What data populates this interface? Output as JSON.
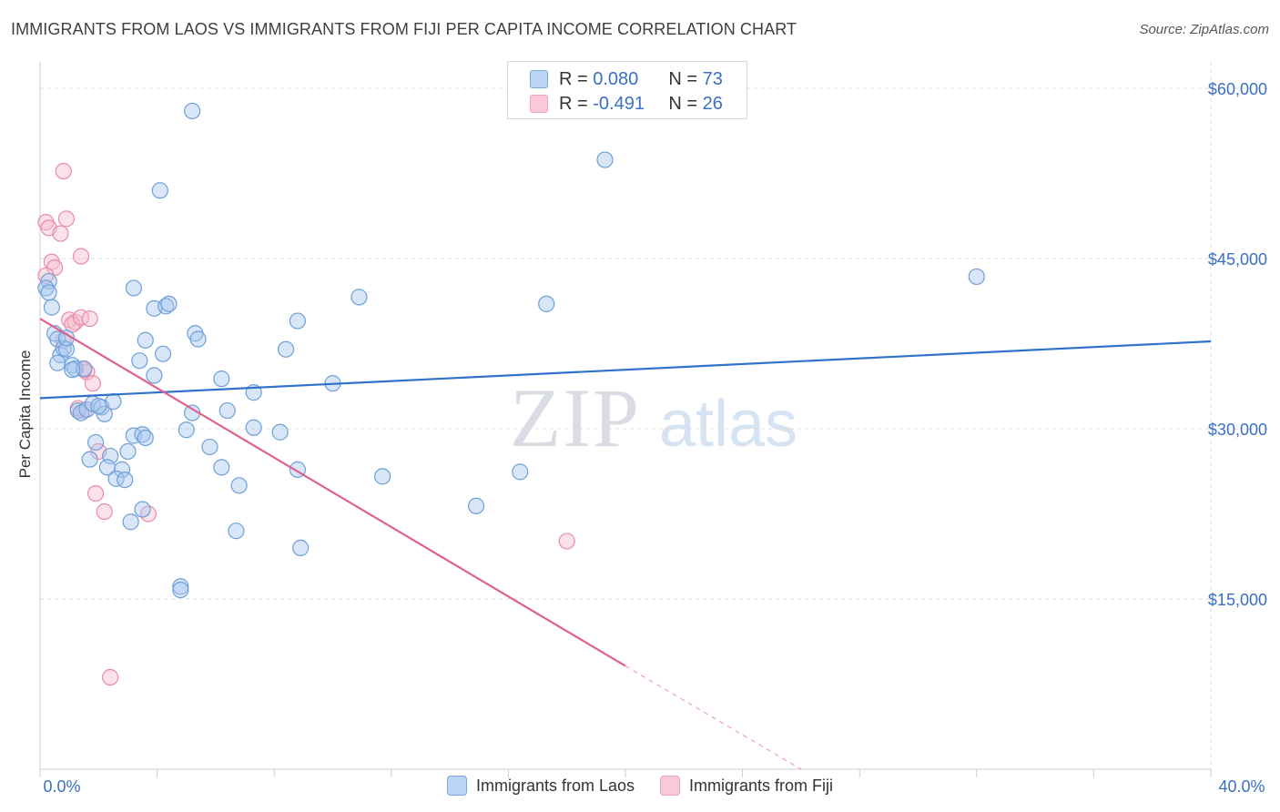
{
  "header": {
    "title": "IMMIGRANTS FROM LAOS VS IMMIGRANTS FROM FIJI PER CAPITA INCOME CORRELATION CHART",
    "source": "Source: ZipAtlas.com"
  },
  "watermark": {
    "zip": "ZIP",
    "atlas": "atlas"
  },
  "stats": {
    "laos": {
      "r_label": "R =",
      "r_value": "0.080",
      "n_label": "N =",
      "n_value": "73"
    },
    "fiji": {
      "r_label": "R =",
      "r_value": "-0.491",
      "n_label": "N =",
      "n_value": "26"
    }
  },
  "legend": {
    "laos_label": "Immigrants from Laos",
    "fiji_label": "Immigrants from Fiji"
  },
  "colors": {
    "laos_fill": "#a9c8f0",
    "laos_stroke": "#6e9fd8",
    "laos_line": "#2f72c9",
    "fiji_fill": "#f7bccd",
    "fiji_stroke": "#e98aa8",
    "fiji_line": "#e0628c",
    "tick_label": "#3a6fc4",
    "grid": "#dcdcdc"
  },
  "chart_data": {
    "type": "scatter",
    "title": "IMMIGRANTS FROM LAOS VS IMMIGRANTS FROM FIJI PER CAPITA INCOME CORRELATION CHART",
    "xlabel": "",
    "ylabel": "Per Capita Income",
    "xlim": [
      0,
      40
    ],
    "ylim": [
      0,
      62000
    ],
    "x_tick_labels": [
      "0.0%",
      "40.0%"
    ],
    "y_ticks": [
      15000,
      30000,
      45000,
      60000
    ],
    "y_tick_labels": [
      "$15,000",
      "$30,000",
      "$45,000",
      "$60,000"
    ],
    "grid": true,
    "series": [
      {
        "name": "Immigrants from Laos",
        "r": 0.08,
        "n": 73,
        "trend": {
          "x": [
            0,
            40
          ],
          "y": [
            32700,
            37700
          ]
        },
        "points": [
          [
            0.3,
            43000
          ],
          [
            0.2,
            42400
          ],
          [
            0.3,
            42000
          ],
          [
            0.4,
            40700
          ],
          [
            0.5,
            38400
          ],
          [
            0.6,
            37900
          ],
          [
            0.7,
            36500
          ],
          [
            0.6,
            35800
          ],
          [
            0.8,
            37100
          ],
          [
            0.9,
            37000
          ],
          [
            1.1,
            35600
          ],
          [
            1.2,
            35300
          ],
          [
            1.5,
            35300
          ],
          [
            1.3,
            31600
          ],
          [
            1.4,
            31400
          ],
          [
            1.6,
            31700
          ],
          [
            1.8,
            32200
          ],
          [
            2.1,
            31900
          ],
          [
            2.2,
            31300
          ],
          [
            2.5,
            32400
          ],
          [
            1.9,
            28800
          ],
          [
            1.7,
            27300
          ],
          [
            2.4,
            27600
          ],
          [
            2.3,
            26600
          ],
          [
            2.8,
            26400
          ],
          [
            2.6,
            25600
          ],
          [
            2.9,
            25500
          ],
          [
            3.0,
            28000
          ],
          [
            3.2,
            29400
          ],
          [
            3.5,
            29500
          ],
          [
            3.6,
            29200
          ],
          [
            3.4,
            36000
          ],
          [
            3.6,
            37800
          ],
          [
            3.2,
            42400
          ],
          [
            3.9,
            34700
          ],
          [
            3.9,
            40600
          ],
          [
            4.3,
            40800
          ],
          [
            4.4,
            41000
          ],
          [
            4.2,
            36600
          ],
          [
            4.1,
            51000
          ],
          [
            5.2,
            58000
          ],
          [
            5.3,
            38400
          ],
          [
            5.4,
            37900
          ],
          [
            5.2,
            31400
          ],
          [
            5.0,
            29900
          ],
          [
            5.8,
            28400
          ],
          [
            6.2,
            26600
          ],
          [
            6.2,
            34400
          ],
          [
            6.4,
            31600
          ],
          [
            6.8,
            25000
          ],
          [
            6.7,
            21000
          ],
          [
            7.3,
            30100
          ],
          [
            7.3,
            33200
          ],
          [
            8.2,
            29700
          ],
          [
            8.4,
            37000
          ],
          [
            8.8,
            39500
          ],
          [
            8.8,
            26400
          ],
          [
            8.9,
            19500
          ],
          [
            10.0,
            34000
          ],
          [
            3.5,
            22900
          ],
          [
            3.1,
            21800
          ],
          [
            4.8,
            16100
          ],
          [
            4.8,
            15800
          ],
          [
            10.9,
            41600
          ],
          [
            11.7,
            25800
          ],
          [
            14.9,
            23200
          ],
          [
            16.4,
            26200
          ],
          [
            17.3,
            41000
          ],
          [
            19.3,
            53700
          ],
          [
            32.0,
            43400
          ],
          [
            1.1,
            35200
          ],
          [
            0.9,
            38000
          ],
          [
            2.0,
            32000
          ]
        ]
      },
      {
        "name": "Immigrants from Fiji",
        "r": -0.491,
        "n": 26,
        "trend": {
          "x": [
            0,
            20
          ],
          "y": [
            39700,
            9100
          ]
        },
        "trend_extension": {
          "x": [
            20,
            26
          ],
          "y": [
            9100,
            0
          ]
        },
        "points": [
          [
            0.2,
            48200
          ],
          [
            0.3,
            47700
          ],
          [
            0.7,
            47200
          ],
          [
            0.8,
            52700
          ],
          [
            0.9,
            48500
          ],
          [
            1.4,
            45200
          ],
          [
            0.4,
            44700
          ],
          [
            0.5,
            44200
          ],
          [
            0.2,
            43500
          ],
          [
            0.8,
            37800
          ],
          [
            1.0,
            39600
          ],
          [
            1.2,
            39400
          ],
          [
            1.1,
            39200
          ],
          [
            1.4,
            39800
          ],
          [
            1.7,
            39700
          ],
          [
            1.6,
            35000
          ],
          [
            1.8,
            34000
          ],
          [
            1.3,
            31800
          ],
          [
            1.5,
            31600
          ],
          [
            2.0,
            28000
          ],
          [
            1.9,
            24300
          ],
          [
            2.2,
            22700
          ],
          [
            3.7,
            22500
          ],
          [
            18.0,
            20100
          ],
          [
            2.4,
            8100
          ],
          [
            1.5,
            35200
          ]
        ]
      }
    ]
  }
}
